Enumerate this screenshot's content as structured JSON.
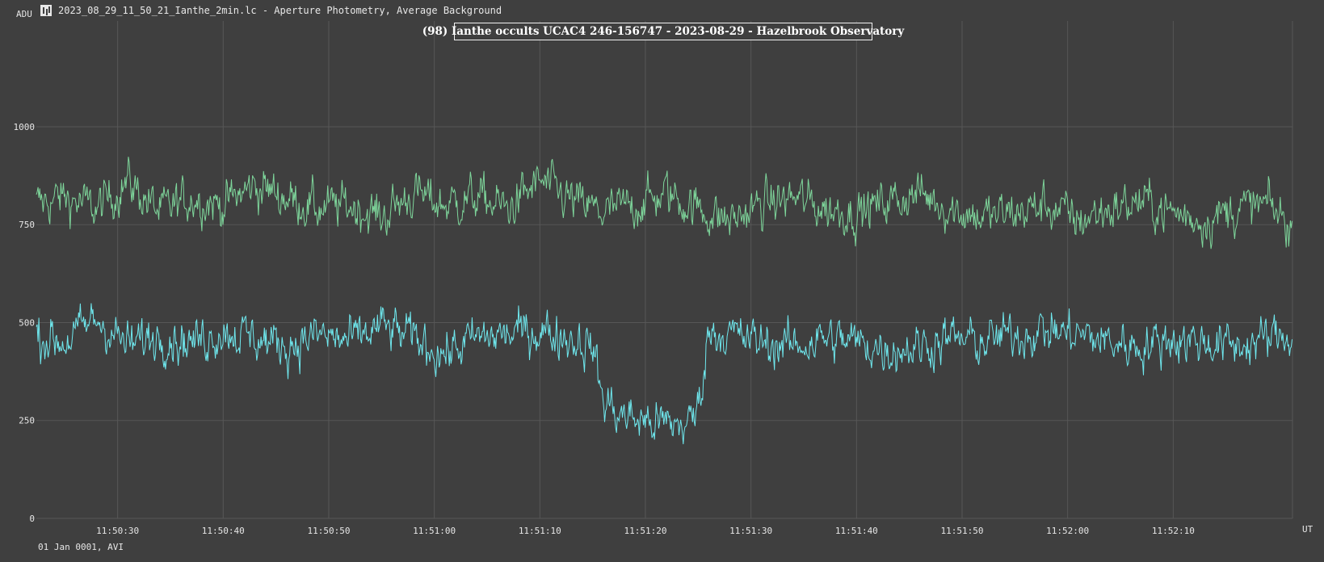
{
  "window": {
    "title": "2023_08_29_11_50_21_Ianthe_2min.lc - Aperture Photometry, Average Background",
    "icon": "lightcurve-app-icon"
  },
  "footer": {
    "date_note": "01 Jan 0001, AVI"
  },
  "chart_data": {
    "type": "line",
    "title": "(98) Ianthe occults UCAC4 246-156747 - 2023-08-29 - Hazelbrook Observatory",
    "xlabel": "UT",
    "ylabel": "ADU",
    "x_axis_type": "time",
    "x_tick_labels": [
      "11:50:30",
      "11:50:40",
      "11:50:50",
      "11:51:00",
      "11:51:10",
      "11:51:20",
      "11:51:30",
      "11:51:40",
      "11:51:50",
      "11:52:00",
      "11:52:10"
    ],
    "y_tick_labels": [
      "0",
      "250",
      "500",
      "750",
      "1000"
    ],
    "xlim": [
      "11:50:22.3",
      "11:52:21.3"
    ],
    "ylim": [
      0,
      1270
    ],
    "grid": true,
    "series": [
      {
        "color": "#7ed69b",
        "x": [
          "11:50:22",
          "11:50:25",
          "11:50:28",
          "11:50:31",
          "11:50:34",
          "11:50:37",
          "11:50:40",
          "11:50:43",
          "11:50:46",
          "11:50:49",
          "11:50:52",
          "11:50:55",
          "11:50:58",
          "11:51:01",
          "11:51:04",
          "11:51:07",
          "11:51:10",
          "11:51:13",
          "11:51:16",
          "11:51:19",
          "11:51:22",
          "11:51:25",
          "11:51:28",
          "11:51:31",
          "11:51:34",
          "11:51:37",
          "11:51:40",
          "11:51:43",
          "11:51:46",
          "11:51:49",
          "11:51:52",
          "11:51:55",
          "11:51:58",
          "11:52:01",
          "11:52:04",
          "11:52:07",
          "11:52:10",
          "11:52:13",
          "11:52:16",
          "11:52:19",
          "11:52:21"
        ],
        "y": [
          800,
          820,
          790,
          860,
          780,
          820,
          800,
          850,
          820,
          790,
          800,
          770,
          830,
          800,
          820,
          790,
          860,
          810,
          780,
          800,
          830,
          790,
          760,
          800,
          820,
          790,
          780,
          810,
          830,
          790,
          770,
          780,
          800,
          760,
          790,
          810,
          780,
          760,
          790,
          800,
          750
        ]
      },
      {
        "color": "#6fe8ee",
        "x": [
          "11:50:22",
          "11:50:25",
          "11:50:28",
          "11:50:31",
          "11:50:34",
          "11:50:37",
          "11:50:40",
          "11:50:43",
          "11:50:46",
          "11:50:49",
          "11:50:52",
          "11:50:55",
          "11:50:58",
          "11:51:01",
          "11:51:04",
          "11:51:07",
          "11:51:10",
          "11:51:13",
          "11:51:15",
          "11:51:16",
          "11:51:18",
          "11:51:20",
          "11:51:22",
          "11:51:24",
          "11:51:25",
          "11:51:26",
          "11:51:28",
          "11:51:31",
          "11:51:34",
          "11:51:37",
          "11:51:40",
          "11:51:43",
          "11:51:46",
          "11:51:49",
          "11:51:52",
          "11:51:55",
          "11:51:58",
          "11:52:01",
          "11:52:04",
          "11:52:07",
          "11:52:10",
          "11:52:13",
          "11:52:16",
          "11:52:19",
          "11:52:21"
        ],
        "y": [
          470,
          450,
          510,
          440,
          470,
          450,
          480,
          460,
          440,
          470,
          450,
          490,
          460,
          420,
          460,
          470,
          480,
          460,
          440,
          300,
          260,
          250,
          240,
          240,
          280,
          480,
          470,
          450,
          440,
          460,
          450,
          430,
          440,
          460,
          450,
          470,
          480,
          470,
          450,
          440,
          460,
          450,
          440,
          460,
          470
        ]
      }
    ]
  }
}
